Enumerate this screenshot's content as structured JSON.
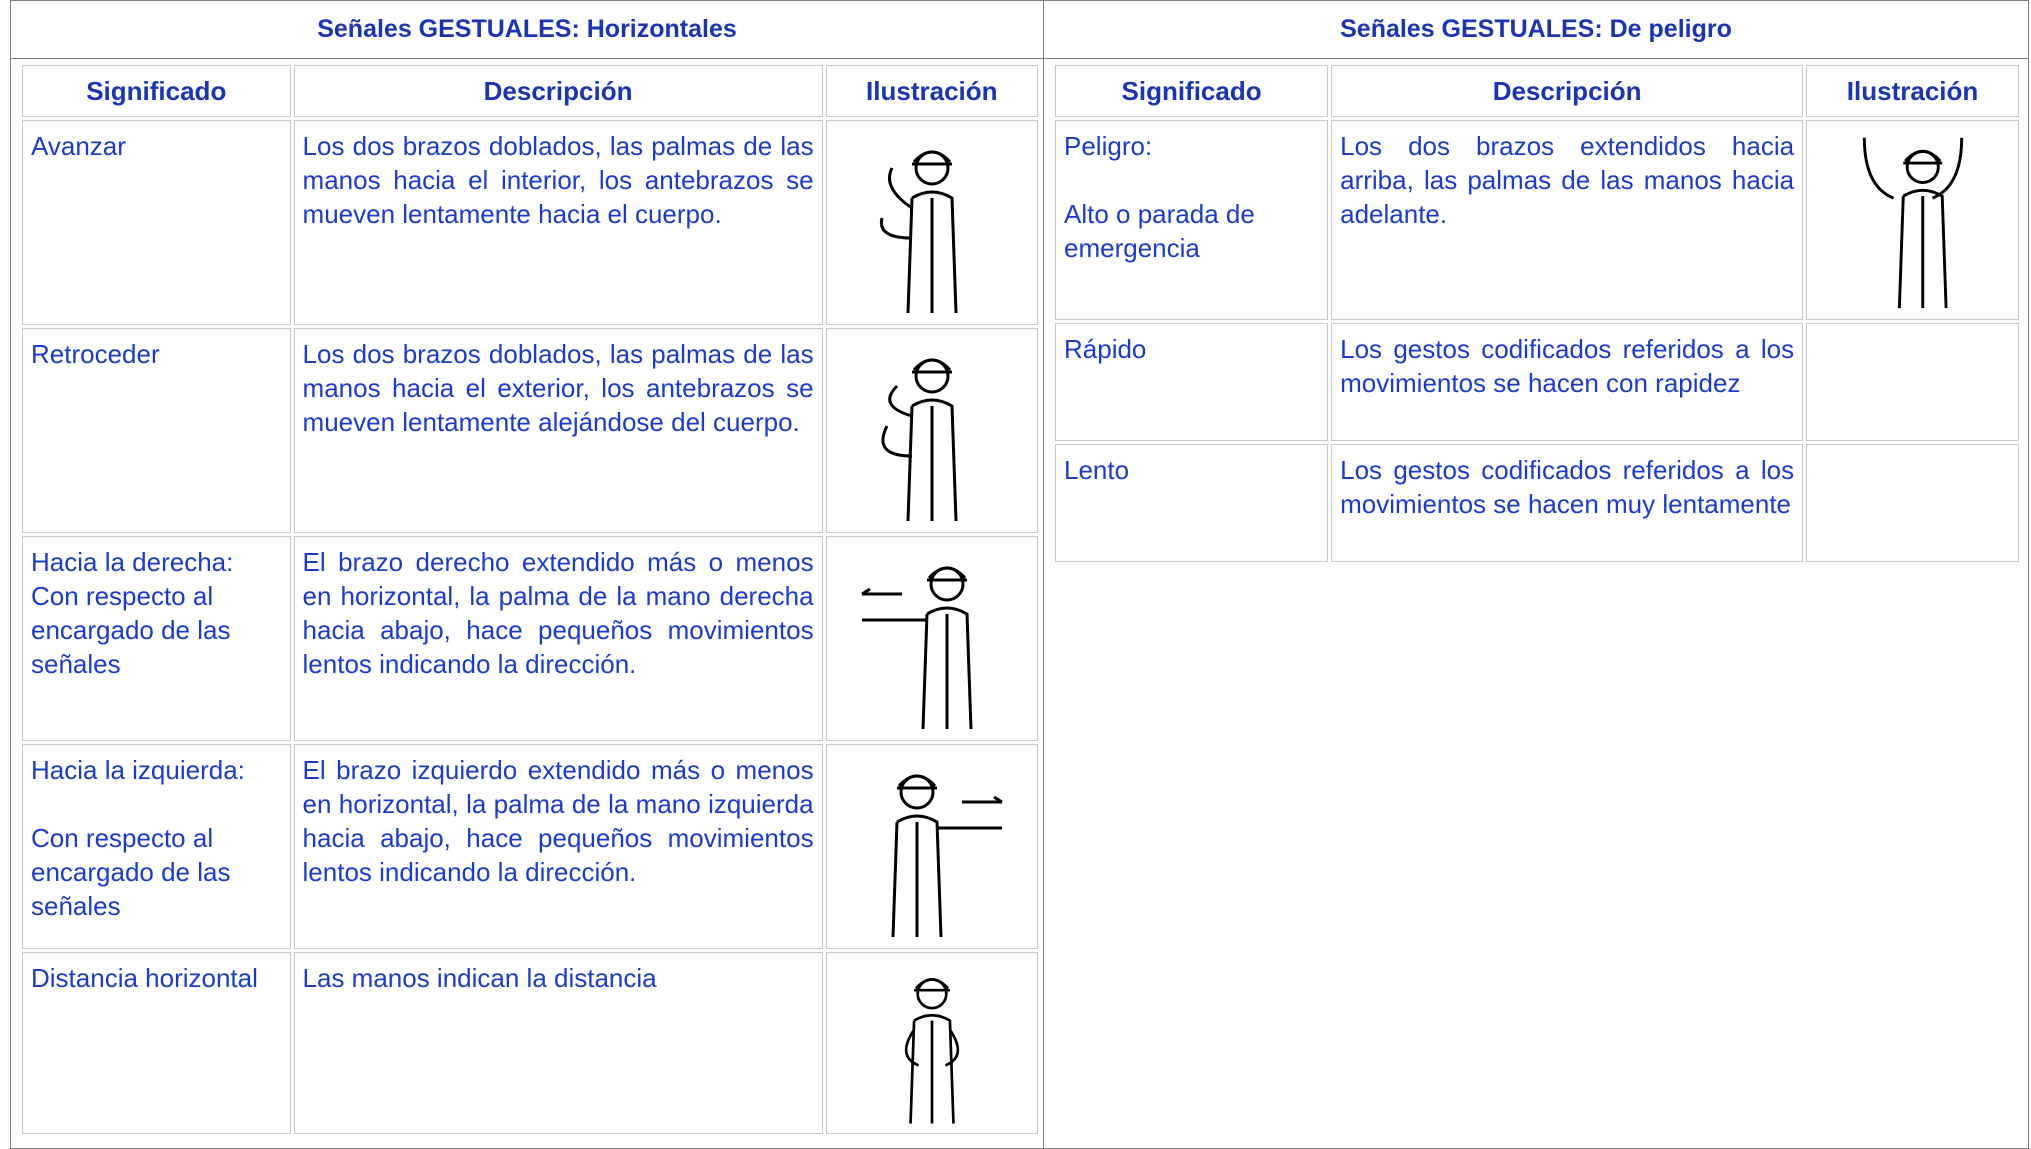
{
  "left": {
    "title": "Señales GESTUALES: Horizontales",
    "headers": [
      "Significado",
      "Descripción",
      "Ilustración"
    ],
    "rows": [
      {
        "meaning": [
          "Avanzar"
        ],
        "description": "Los dos brazos doblados, las palmas de las manos hacia el interior, los antebrazos se mueven lentamente hacia el cuerpo."
      },
      {
        "meaning": [
          "Retroceder"
        ],
        "description": "Los dos brazos doblados, las palmas de las manos hacia el exterior, los antebrazos se mueven lentamente alejándose del cuerpo."
      },
      {
        "meaning": [
          "Hacia la derecha:",
          "Con respecto al encargado de las señales"
        ],
        "description": "El brazo derecho extendido más o menos en horizontal, la palma de la mano derecha hacia abajo, hace pequeños movimientos lentos indicando la dirección."
      },
      {
        "meaning": [
          "Hacia la izquierda:",
          "Con respecto al encargado de las señales"
        ],
        "description": "El brazo izquierdo extendido más o menos en horizontal, la palma de la mano izquierda hacia abajo, hace pequeños movimientos lentos indicando la dirección."
      },
      {
        "meaning": [
          "Distancia horizontal"
        ],
        "description": "Las manos indican la distancia"
      }
    ]
  },
  "right": {
    "title": "Señales GESTUALES: De peligro",
    "headers": [
      "Significado",
      "Descripción",
      "Ilustración"
    ],
    "rows": [
      {
        "meaning": [
          "Peligro:",
          "Alto o parada de emergencia"
        ],
        "description": "Los dos brazos extendidos hacia arriba, las palmas de las manos hacia adelante."
      },
      {
        "meaning": [
          "Rápido"
        ],
        "description": "Los gestos codificados referidos a los movimientos se hacen con rapidez"
      },
      {
        "meaning": [
          "Lento"
        ],
        "description": "Los gestos codificados referidos a los movimientos se hacen muy lentamente"
      }
    ]
  }
}
